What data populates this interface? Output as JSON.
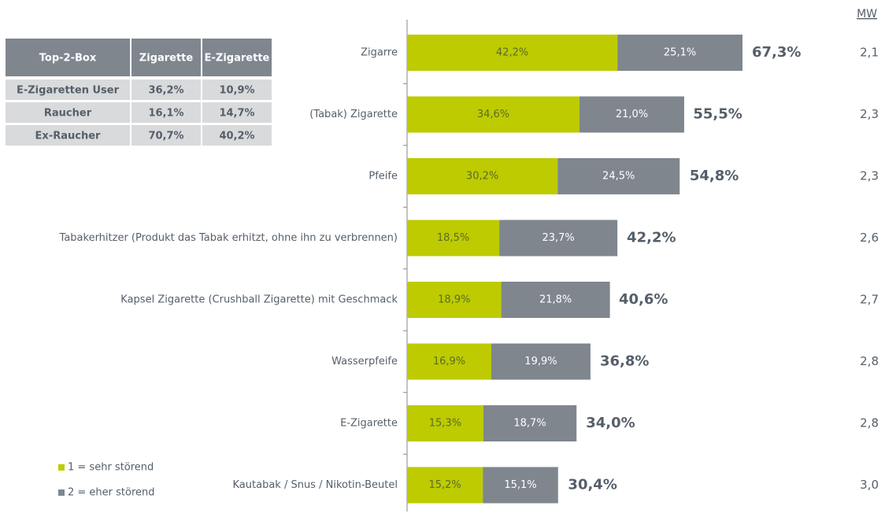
{
  "chart_data": {
    "type": "stacked_bar_horizontal",
    "categories": [
      "Zigarre",
      "(Tabak) Zigarette",
      "Pfeife",
      "Tabakerhitzer (Produkt das Tabak erhitzt, ohne ihn zu verbrennen)",
      "Kapsel Zigarette (Crushball Zigarette) mit Geschmack",
      "Wasserpfeife",
      "E-Zigarette",
      "Kautabak / Snus / Nikotin-Beutel"
    ],
    "series": [
      {
        "name": "1 = sehr störend",
        "color": "#bdcb00",
        "values": [
          42.2,
          34.6,
          30.2,
          18.5,
          18.9,
          16.9,
          15.3,
          15.2
        ],
        "value_labels": [
          "42,2%",
          "34,6%",
          "30,2%",
          "18,5%",
          "18,9%",
          "16,9%",
          "15,3%",
          "15,2%"
        ]
      },
      {
        "name": "2 = eher störend",
        "color": "#7f868e",
        "values": [
          25.1,
          21.0,
          24.5,
          23.7,
          21.8,
          19.9,
          18.7,
          15.1
        ],
        "value_labels": [
          "25,1%",
          "21,0%",
          "24,5%",
          "23,7%",
          "21,8%",
          "19,9%",
          "18,7%",
          "15,1%"
        ]
      }
    ],
    "totals": [
      67.3,
      55.5,
      54.8,
      42.2,
      40.6,
      36.8,
      34.0,
      30.4
    ],
    "total_labels": [
      "67,3%",
      "55,5%",
      "54,8%",
      "42,2%",
      "40,6%",
      "36,8%",
      "34,0%",
      "30,4%"
    ],
    "mw_title": "MW",
    "mw": [
      2.1,
      2.3,
      2.3,
      2.6,
      2.7,
      2.8,
      2.8,
      3.0
    ],
    "mw_labels": [
      "2,1",
      "2,3",
      "2,3",
      "2,6",
      "2,7",
      "2,8",
      "2,8",
      "3,0"
    ],
    "xlim": [
      0,
      100
    ]
  },
  "table": {
    "header": [
      "Top-2-Box",
      "Zigarette",
      "E-Zigarette"
    ],
    "rows": [
      [
        "E-Zigaretten User",
        "36,2%",
        "10,9%"
      ],
      [
        "Raucher",
        "16,1%",
        "14,7%"
      ],
      [
        "Ex-Raucher",
        "70,7%",
        "40,2%"
      ]
    ]
  }
}
